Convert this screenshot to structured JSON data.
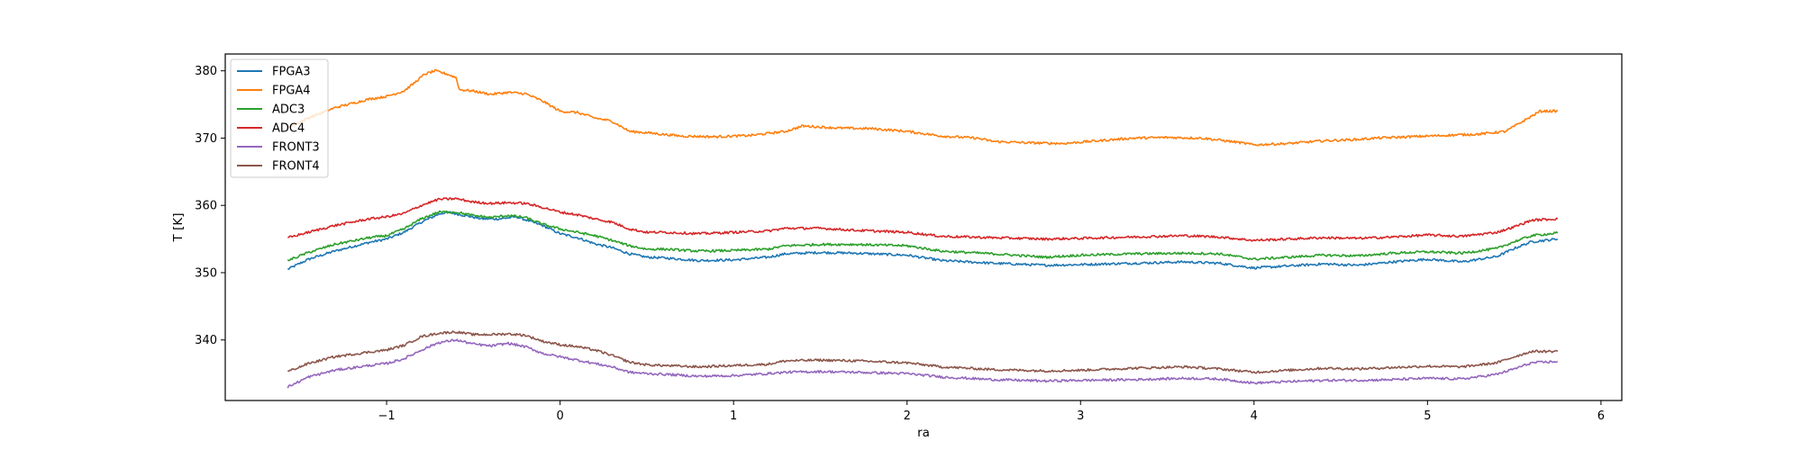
{
  "chart_data": {
    "type": "line",
    "title": "",
    "xlabel": "ra",
    "ylabel": "T [K]",
    "xlim": [
      -1.93,
      6.12
    ],
    "ylim": [
      331.0,
      382.5
    ],
    "xticks": [
      -1,
      0,
      1,
      2,
      3,
      4,
      5,
      6
    ],
    "xtick_labels": [
      "−1",
      "0",
      "1",
      "2",
      "3",
      "4",
      "5",
      "6"
    ],
    "yticks": [
      340,
      350,
      360,
      370,
      380
    ],
    "ytick_labels": [
      "340",
      "350",
      "360",
      "370",
      "380"
    ],
    "grid": false,
    "legend_position": "top-left",
    "series": [
      {
        "name": "FPGA3",
        "color": "#1f77b4",
        "points": [
          [
            -1.57,
            350.5
          ],
          [
            -1.45,
            352.0
          ],
          [
            -1.3,
            353.2
          ],
          [
            -1.1,
            354.5
          ],
          [
            -1.0,
            355.0
          ],
          [
            -0.9,
            356.0
          ],
          [
            -0.8,
            357.5
          ],
          [
            -0.7,
            358.7
          ],
          [
            -0.65,
            359.0
          ],
          [
            -0.55,
            358.5
          ],
          [
            -0.45,
            358.0
          ],
          [
            -0.35,
            358.0
          ],
          [
            -0.25,
            358.3
          ],
          [
            -0.1,
            357.0
          ],
          [
            0.0,
            355.8
          ],
          [
            0.1,
            355.2
          ],
          [
            0.2,
            354.3
          ],
          [
            0.3,
            353.7
          ],
          [
            0.4,
            352.8
          ],
          [
            0.5,
            352.3
          ],
          [
            0.6,
            352.2
          ],
          [
            0.8,
            351.8
          ],
          [
            1.0,
            351.9
          ],
          [
            1.2,
            352.3
          ],
          [
            1.3,
            352.8
          ],
          [
            1.5,
            353.0
          ],
          [
            1.7,
            352.9
          ],
          [
            2.0,
            352.6
          ],
          [
            2.2,
            351.8
          ],
          [
            2.5,
            351.4
          ],
          [
            2.8,
            351.1
          ],
          [
            3.0,
            351.2
          ],
          [
            3.3,
            351.4
          ],
          [
            3.6,
            351.6
          ],
          [
            3.8,
            351.4
          ],
          [
            4.0,
            350.7
          ],
          [
            4.2,
            351.0
          ],
          [
            4.4,
            351.3
          ],
          [
            4.6,
            351.1
          ],
          [
            4.8,
            351.6
          ],
          [
            5.0,
            352.0
          ],
          [
            5.2,
            351.6
          ],
          [
            5.4,
            352.4
          ],
          [
            5.5,
            353.6
          ],
          [
            5.6,
            354.6
          ],
          [
            5.75,
            355.0
          ]
        ]
      },
      {
        "name": "FPGA4",
        "color": "#ff7f0e",
        "points": [
          [
            -1.57,
            371.5
          ],
          [
            -1.45,
            373.0
          ],
          [
            -1.3,
            374.5
          ],
          [
            -1.1,
            375.8
          ],
          [
            -1.0,
            376.2
          ],
          [
            -0.9,
            377.0
          ],
          [
            -0.85,
            378.0
          ],
          [
            -0.78,
            379.5
          ],
          [
            -0.72,
            380.0
          ],
          [
            -0.65,
            379.5
          ],
          [
            -0.6,
            379.0
          ],
          [
            -0.58,
            377.2
          ],
          [
            -0.5,
            377.0
          ],
          [
            -0.4,
            376.5
          ],
          [
            -0.3,
            376.8
          ],
          [
            -0.2,
            376.6
          ],
          [
            -0.1,
            375.5
          ],
          [
            0.0,
            374.0
          ],
          [
            0.1,
            373.8
          ],
          [
            0.2,
            373.0
          ],
          [
            0.3,
            372.5
          ],
          [
            0.4,
            371.0
          ],
          [
            0.5,
            370.8
          ],
          [
            0.7,
            370.3
          ],
          [
            0.9,
            370.2
          ],
          [
            1.1,
            370.4
          ],
          [
            1.3,
            371.0
          ],
          [
            1.4,
            371.8
          ],
          [
            1.6,
            371.5
          ],
          [
            1.8,
            371.4
          ],
          [
            2.0,
            371.0
          ],
          [
            2.2,
            370.3
          ],
          [
            2.4,
            370.0
          ],
          [
            2.5,
            369.5
          ],
          [
            2.7,
            369.3
          ],
          [
            2.9,
            369.2
          ],
          [
            3.1,
            369.6
          ],
          [
            3.3,
            370.0
          ],
          [
            3.5,
            370.1
          ],
          [
            3.7,
            370.0
          ],
          [
            3.9,
            369.4
          ],
          [
            4.0,
            369.0
          ],
          [
            4.2,
            369.2
          ],
          [
            4.4,
            369.6
          ],
          [
            4.6,
            369.8
          ],
          [
            4.7,
            370.0
          ],
          [
            4.9,
            370.2
          ],
          [
            5.1,
            370.4
          ],
          [
            5.3,
            370.6
          ],
          [
            5.45,
            371.0
          ],
          [
            5.55,
            372.5
          ],
          [
            5.65,
            374.0
          ],
          [
            5.75,
            374.0
          ]
        ]
      },
      {
        "name": "ADC3",
        "color": "#2ca02c",
        "points": [
          [
            -1.57,
            351.8
          ],
          [
            -1.45,
            353.0
          ],
          [
            -1.3,
            354.2
          ],
          [
            -1.1,
            355.2
          ],
          [
            -1.0,
            355.5
          ],
          [
            -0.9,
            356.5
          ],
          [
            -0.8,
            358.0
          ],
          [
            -0.7,
            359.0
          ],
          [
            -0.6,
            359.0
          ],
          [
            -0.5,
            358.5
          ],
          [
            -0.4,
            358.2
          ],
          [
            -0.3,
            358.5
          ],
          [
            -0.2,
            358.2
          ],
          [
            -0.1,
            357.2
          ],
          [
            0.0,
            356.5
          ],
          [
            0.1,
            356.0
          ],
          [
            0.2,
            355.5
          ],
          [
            0.3,
            354.8
          ],
          [
            0.4,
            354.0
          ],
          [
            0.5,
            353.5
          ],
          [
            0.6,
            353.5
          ],
          [
            0.8,
            353.2
          ],
          [
            1.0,
            353.3
          ],
          [
            1.2,
            353.5
          ],
          [
            1.3,
            354.0
          ],
          [
            1.5,
            354.2
          ],
          [
            1.7,
            354.2
          ],
          [
            2.0,
            354.0
          ],
          [
            2.2,
            353.2
          ],
          [
            2.5,
            352.8
          ],
          [
            2.8,
            352.3
          ],
          [
            3.0,
            352.6
          ],
          [
            3.3,
            352.8
          ],
          [
            3.6,
            352.9
          ],
          [
            3.8,
            352.8
          ],
          [
            4.0,
            352.0
          ],
          [
            4.2,
            352.3
          ],
          [
            4.4,
            352.6
          ],
          [
            4.6,
            352.5
          ],
          [
            4.8,
            352.9
          ],
          [
            5.0,
            353.1
          ],
          [
            5.2,
            352.9
          ],
          [
            5.4,
            353.6
          ],
          [
            5.5,
            354.6
          ],
          [
            5.6,
            355.5
          ],
          [
            5.75,
            355.9
          ]
        ]
      },
      {
        "name": "ADC4",
        "color": "#d62728",
        "points": [
          [
            -1.57,
            355.2
          ],
          [
            -1.45,
            356.0
          ],
          [
            -1.3,
            357.0
          ],
          [
            -1.1,
            358.0
          ],
          [
            -1.0,
            358.3
          ],
          [
            -0.9,
            358.8
          ],
          [
            -0.8,
            360.0
          ],
          [
            -0.7,
            360.9
          ],
          [
            -0.6,
            361.0
          ],
          [
            -0.5,
            360.5
          ],
          [
            -0.4,
            360.3
          ],
          [
            -0.3,
            360.4
          ],
          [
            -0.2,
            360.3
          ],
          [
            -0.1,
            359.7
          ],
          [
            0.0,
            359.0
          ],
          [
            0.1,
            358.6
          ],
          [
            0.2,
            358.0
          ],
          [
            0.3,
            357.5
          ],
          [
            0.4,
            356.5
          ],
          [
            0.5,
            356.0
          ],
          [
            0.6,
            356.0
          ],
          [
            0.8,
            355.8
          ],
          [
            1.0,
            356.0
          ],
          [
            1.2,
            356.2
          ],
          [
            1.3,
            356.6
          ],
          [
            1.5,
            356.6
          ],
          [
            1.7,
            356.3
          ],
          [
            2.0,
            356.0
          ],
          [
            2.2,
            355.4
          ],
          [
            2.5,
            355.2
          ],
          [
            2.8,
            355.0
          ],
          [
            3.0,
            355.1
          ],
          [
            3.3,
            355.3
          ],
          [
            3.6,
            355.5
          ],
          [
            3.8,
            355.3
          ],
          [
            4.0,
            354.8
          ],
          [
            4.2,
            355.0
          ],
          [
            4.4,
            355.2
          ],
          [
            4.6,
            355.1
          ],
          [
            4.8,
            355.3
          ],
          [
            5.0,
            355.6
          ],
          [
            5.2,
            355.4
          ],
          [
            5.4,
            356.0
          ],
          [
            5.5,
            356.8
          ],
          [
            5.6,
            357.8
          ],
          [
            5.75,
            358.0
          ]
        ]
      },
      {
        "name": "FRONT3",
        "color": "#9467bd",
        "points": [
          [
            -1.57,
            333.0
          ],
          [
            -1.45,
            334.5
          ],
          [
            -1.3,
            335.5
          ],
          [
            -1.1,
            336.2
          ],
          [
            -1.0,
            336.5
          ],
          [
            -0.9,
            337.2
          ],
          [
            -0.8,
            338.5
          ],
          [
            -0.7,
            339.6
          ],
          [
            -0.6,
            340.0
          ],
          [
            -0.5,
            339.4
          ],
          [
            -0.4,
            339.1
          ],
          [
            -0.3,
            339.5
          ],
          [
            -0.2,
            339.0
          ],
          [
            -0.1,
            338.0
          ],
          [
            0.0,
            337.5
          ],
          [
            0.1,
            337.0
          ],
          [
            0.2,
            336.5
          ],
          [
            0.3,
            336.0
          ],
          [
            0.4,
            335.2
          ],
          [
            0.5,
            335.0
          ],
          [
            0.6,
            334.9
          ],
          [
            0.8,
            334.6
          ],
          [
            1.0,
            334.7
          ],
          [
            1.2,
            335.0
          ],
          [
            1.3,
            335.2
          ],
          [
            1.5,
            335.3
          ],
          [
            1.7,
            335.2
          ],
          [
            2.0,
            335.0
          ],
          [
            2.2,
            334.5
          ],
          [
            2.5,
            334.1
          ],
          [
            2.8,
            333.9
          ],
          [
            3.0,
            334.0
          ],
          [
            3.3,
            334.1
          ],
          [
            3.6,
            334.3
          ],
          [
            3.8,
            334.2
          ],
          [
            4.0,
            333.6
          ],
          [
            4.2,
            333.8
          ],
          [
            4.4,
            334.0
          ],
          [
            4.6,
            334.0
          ],
          [
            4.8,
            334.1
          ],
          [
            5.0,
            334.3
          ],
          [
            5.2,
            334.2
          ],
          [
            5.4,
            334.9
          ],
          [
            5.5,
            335.7
          ],
          [
            5.6,
            336.6
          ],
          [
            5.75,
            336.8
          ]
        ]
      },
      {
        "name": "FRONT4",
        "color": "#8c564b",
        "points": [
          [
            -1.57,
            335.3
          ],
          [
            -1.45,
            336.5
          ],
          [
            -1.3,
            337.5
          ],
          [
            -1.1,
            338.2
          ],
          [
            -1.0,
            338.5
          ],
          [
            -0.9,
            339.2
          ],
          [
            -0.8,
            340.5
          ],
          [
            -0.7,
            341.0
          ],
          [
            -0.6,
            341.2
          ],
          [
            -0.5,
            340.8
          ],
          [
            -0.4,
            340.8
          ],
          [
            -0.3,
            340.9
          ],
          [
            -0.2,
            340.7
          ],
          [
            -0.1,
            339.8
          ],
          [
            0.0,
            339.3
          ],
          [
            0.1,
            339.0
          ],
          [
            0.2,
            338.5
          ],
          [
            0.3,
            337.7
          ],
          [
            0.4,
            336.7
          ],
          [
            0.5,
            336.3
          ],
          [
            0.6,
            336.2
          ],
          [
            0.8,
            336.0
          ],
          [
            1.0,
            336.2
          ],
          [
            1.2,
            336.4
          ],
          [
            1.3,
            336.9
          ],
          [
            1.5,
            337.0
          ],
          [
            1.7,
            336.9
          ],
          [
            2.0,
            336.6
          ],
          [
            2.2,
            336.0
          ],
          [
            2.5,
            335.6
          ],
          [
            2.8,
            335.4
          ],
          [
            3.0,
            335.5
          ],
          [
            3.3,
            335.8
          ],
          [
            3.6,
            336.0
          ],
          [
            3.8,
            335.7
          ],
          [
            4.0,
            335.2
          ],
          [
            4.2,
            335.5
          ],
          [
            4.4,
            335.8
          ],
          [
            4.6,
            335.7
          ],
          [
            4.8,
            335.9
          ],
          [
            5.0,
            336.1
          ],
          [
            5.2,
            336.0
          ],
          [
            5.4,
            336.6
          ],
          [
            5.5,
            337.5
          ],
          [
            5.6,
            338.3
          ],
          [
            5.75,
            338.3
          ]
        ]
      }
    ]
  }
}
